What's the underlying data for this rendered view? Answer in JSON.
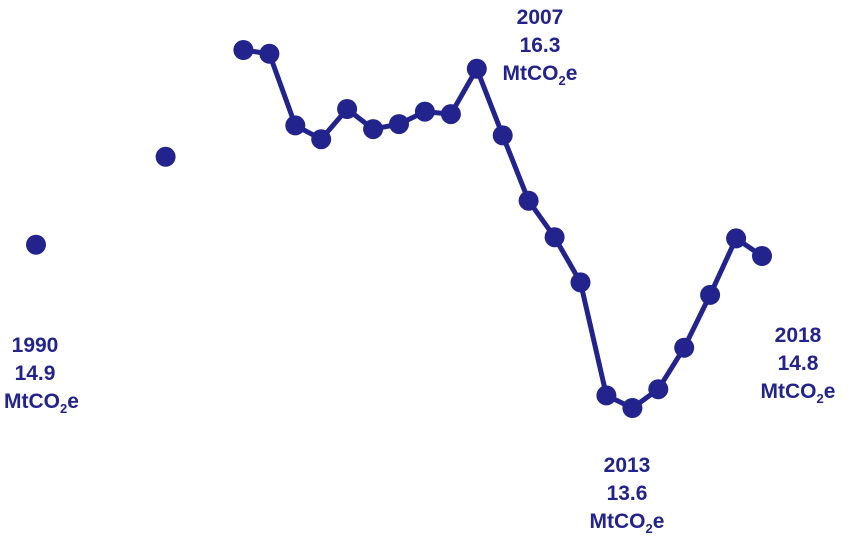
{
  "chart_data": {
    "type": "line",
    "title": "",
    "xlabel": "",
    "ylabel": "",
    "series": [
      {
        "x": [
          1990,
          1995,
          1998,
          1999,
          2000,
          2001,
          2002,
          2003,
          2004,
          2005,
          2006,
          2007,
          2008,
          2009,
          2010,
          2011,
          2012,
          2013,
          2014,
          2015,
          2016,
          2017,
          2018
        ],
        "values": [
          14.9,
          15.6,
          16.45,
          16.42,
          15.85,
          15.74,
          15.98,
          15.82,
          15.86,
          15.96,
          15.94,
          16.3,
          15.77,
          15.25,
          14.96,
          14.6,
          13.7,
          13.6,
          13.75,
          14.08,
          14.5,
          14.95,
          14.81
        ],
        "connected_from": 1998,
        "color": "#23238e"
      }
    ],
    "ylim": [
      13.0,
      16.8
    ],
    "xlim": [
      1989,
      2019
    ],
    "grid": false,
    "annotations": [
      {
        "year": "1990",
        "value": "14.9",
        "unit_main": "MtCO",
        "unit_sub": "2",
        "unit_tail": "e"
      },
      {
        "year": "2007",
        "value": "16.3",
        "unit_main": "MtCO",
        "unit_sub": "2",
        "unit_tail": "e"
      },
      {
        "year": "2013",
        "value": "13.6",
        "unit_main": "MtCO",
        "unit_sub": "2",
        "unit_tail": "e"
      },
      {
        "year": "2018",
        "value": "14.8",
        "unit_main": "MtCO",
        "unit_sub": "2",
        "unit_tail": "e"
      }
    ]
  }
}
